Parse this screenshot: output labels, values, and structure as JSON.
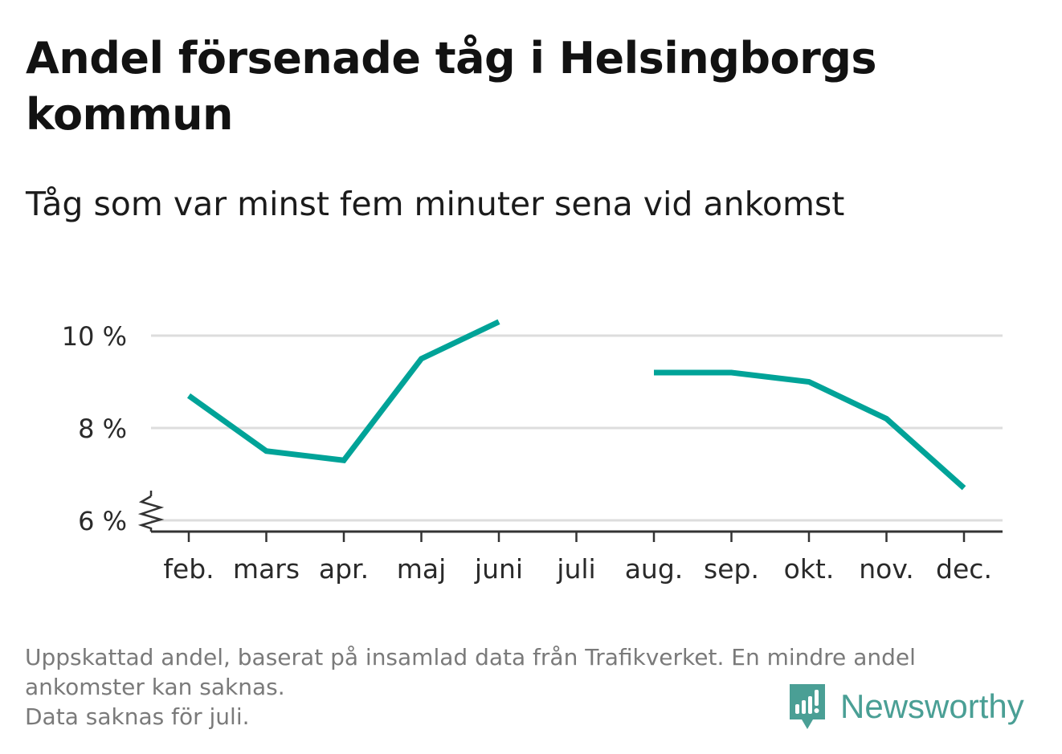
{
  "title": "Andel försenade tåg i Helsingborgs kommun",
  "subtitle": "Tåg som var minst fem minuter sena vid ankomst",
  "footnote": {
    "line1": "Uppskattad andel, baserat på insamlad data från Trafikverket. En mindre andel",
    "line2": "ankomster kan saknas.",
    "line3": "Data saknas för juli."
  },
  "logo": {
    "text": "Newsworthy",
    "icon": "newsworthy-logo-icon"
  },
  "colors": {
    "line": "#00a398",
    "grid": "#dddddd",
    "axis": "#333333",
    "footnote": "#7a7a7a",
    "brand": "#4a9f95"
  },
  "chart_data": {
    "type": "line",
    "title": "Andel försenade tåg i Helsingborgs kommun",
    "subtitle": "Tåg som var minst fem minuter sena vid ankomst",
    "xlabel": "",
    "ylabel": "",
    "categories": [
      "feb.",
      "mars",
      "apr.",
      "maj",
      "juni",
      "juli",
      "aug.",
      "sep.",
      "okt.",
      "nov.",
      "dec."
    ],
    "series": [
      {
        "values": [
          8.7,
          7.5,
          7.3,
          9.5,
          10.3,
          null,
          9.2,
          9.2,
          9.0,
          8.2,
          6.7
        ]
      }
    ],
    "ylim": [
      6,
      10.5
    ],
    "yticks": [
      6,
      8,
      10
    ],
    "ytick_labels": [
      "6 %",
      "8 %",
      "10 %"
    ],
    "y_axis_break": true,
    "grid": true,
    "legend": "none"
  }
}
